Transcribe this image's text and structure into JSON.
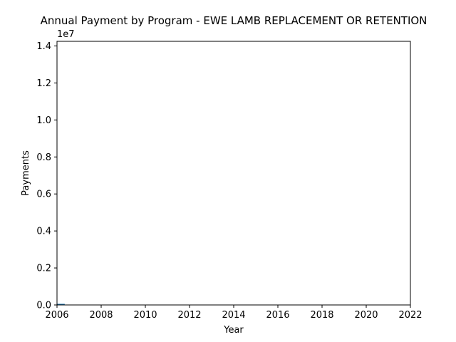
{
  "chart_data": {
    "type": "line",
    "title": "Annual Payment by Program - EWE LAMB REPLACEMENT OR RETENTION",
    "xlabel": "Year",
    "ylabel": "Payments",
    "y_offset_label": "1e7",
    "xlim": [
      2006,
      2022
    ],
    "ylim": [
      0,
      14250000
    ],
    "x_ticks": [
      "2006",
      "2008",
      "2010",
      "2012",
      "2014",
      "2016",
      "2018",
      "2020",
      "2022"
    ],
    "y_ticks": [
      "0.0",
      "0.2",
      "0.4",
      "0.6",
      "0.8",
      "1.0",
      "1.2",
      "1.4"
    ],
    "grid": false,
    "series": [
      {
        "color": "#1f77b4",
        "x": [
          2006.0,
          2006.35
        ],
        "y": [
          30000,
          30000
        ]
      }
    ]
  }
}
